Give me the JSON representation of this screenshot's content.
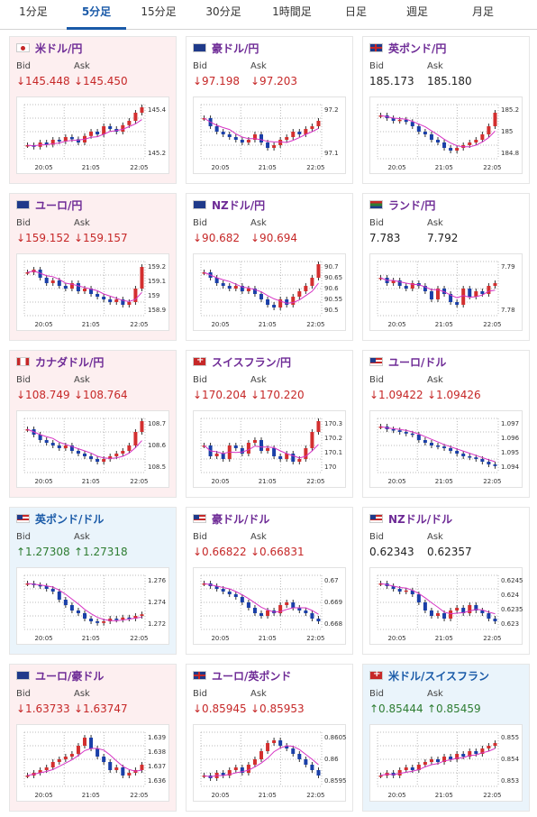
{
  "tabs": [
    {
      "label": "1分足",
      "active": false
    },
    {
      "label": "5分足",
      "active": true
    },
    {
      "label": "15分足",
      "active": false
    },
    {
      "label": "30分足",
      "active": false
    },
    {
      "label": "1時間足",
      "active": false
    },
    {
      "label": "日足",
      "active": false
    },
    {
      "label": "週足",
      "active": false
    },
    {
      "label": "月足",
      "active": false
    }
  ],
  "pairs": [
    {
      "title": "米ドル/円",
      "flag": "jp",
      "tint": "pink",
      "bid_label": "Bid",
      "ask_label": "Ask",
      "bid": "↓145.448",
      "ask": "↓145.450",
      "dir": "dn",
      "chart_data": {
        "type": "candlestick",
        "x_ticks": [
          "20:05",
          "21:05",
          "22:05"
        ],
        "y_ticks": [
          "145.4",
          "145.2"
        ],
        "trend": [
          0.25,
          0.22,
          0.3,
          0.26,
          0.35,
          0.32,
          0.4,
          0.36,
          0.3,
          0.42,
          0.5,
          0.45,
          0.6,
          0.55,
          0.5,
          0.62,
          0.7,
          0.85,
          0.95
        ]
      }
    },
    {
      "title": "豪ドル/円",
      "flag": "au",
      "tint": "white",
      "bid_label": "Bid",
      "ask_label": "Ask",
      "bid": "↓97.198",
      "ask": "↓97.203",
      "dir": "dn",
      "chart_data": {
        "type": "candlestick",
        "x_ticks": [
          "20:05",
          "21:05",
          "22:05"
        ],
        "y_ticks": [
          "97.2",
          "97.1"
        ],
        "trend": [
          0.75,
          0.6,
          0.5,
          0.45,
          0.4,
          0.35,
          0.3,
          0.35,
          0.45,
          0.3,
          0.2,
          0.25,
          0.35,
          0.4,
          0.5,
          0.45,
          0.55,
          0.6,
          0.7
        ]
      }
    },
    {
      "title": "英ポンド/円",
      "flag": "gb",
      "tint": "white",
      "bid_label": "Bid",
      "ask_label": "Ask",
      "bid": "185.173",
      "ask": "185.180",
      "dir": "none",
      "chart_data": {
        "type": "candlestick",
        "x_ticks": [
          "20:05",
          "21:05",
          "22:05"
        ],
        "y_ticks": [
          "185.2",
          "185",
          "184.8"
        ],
        "trend": [
          0.8,
          0.75,
          0.7,
          0.72,
          0.68,
          0.6,
          0.5,
          0.45,
          0.35,
          0.3,
          0.2,
          0.15,
          0.2,
          0.25,
          0.3,
          0.35,
          0.45,
          0.6,
          0.85
        ]
      }
    },
    {
      "title": "ユーロ/円",
      "flag": "eu",
      "tint": "pink",
      "bid_label": "Bid",
      "ask_label": "Ask",
      "bid": "↓159.152",
      "ask": "↓159.157",
      "dir": "dn",
      "chart_data": {
        "type": "candlestick",
        "x_ticks": [
          "20:05",
          "21:05",
          "22:05"
        ],
        "y_ticks": [
          "159.2",
          "159.1",
          "159",
          "158.9"
        ],
        "trend": [
          0.8,
          0.85,
          0.7,
          0.6,
          0.65,
          0.55,
          0.5,
          0.6,
          0.45,
          0.5,
          0.4,
          0.35,
          0.3,
          0.25,
          0.3,
          0.2,
          0.25,
          0.5,
          0.9
        ]
      }
    },
    {
      "title": "NZドル/円",
      "flag": "nz",
      "tint": "white",
      "bid_label": "Bid",
      "ask_label": "Ask",
      "bid": "↓90.682",
      "ask": "↓90.694",
      "dir": "dn",
      "chart_data": {
        "type": "candlestick",
        "x_ticks": [
          "20:05",
          "21:05",
          "22:05"
        ],
        "y_ticks": [
          "90.7",
          "90.65",
          "90.6",
          "90.55",
          "90.5"
        ],
        "trend": [
          0.8,
          0.7,
          0.6,
          0.55,
          0.5,
          0.55,
          0.45,
          0.5,
          0.4,
          0.3,
          0.2,
          0.15,
          0.3,
          0.2,
          0.35,
          0.45,
          0.55,
          0.7,
          0.95
        ]
      }
    },
    {
      "title": "ランド/円",
      "flag": "za",
      "tint": "white",
      "bid_label": "Bid",
      "ask_label": "Ask",
      "bid": "7.783",
      "ask": "7.792",
      "dir": "none",
      "chart_data": {
        "type": "candlestick",
        "x_ticks": [
          "20:05",
          "21:05",
          "22:05"
        ],
        "y_ticks": [
          "7.79",
          "7.78"
        ],
        "trend": [
          0.7,
          0.6,
          0.65,
          0.55,
          0.5,
          0.6,
          0.55,
          0.45,
          0.3,
          0.5,
          0.4,
          0.25,
          0.2,
          0.5,
          0.35,
          0.45,
          0.4,
          0.55,
          0.6
        ]
      }
    },
    {
      "title": "カナダドル/円",
      "flag": "ca",
      "tint": "pink",
      "bid_label": "Bid",
      "ask_label": "Ask",
      "bid": "↓108.749",
      "ask": "↓108.764",
      "dir": "dn",
      "chart_data": {
        "type": "candlestick",
        "x_ticks": [
          "20:05",
          "21:05",
          "22:05"
        ],
        "y_ticks": [
          "108.7",
          "108.6",
          "108.5"
        ],
        "trend": [
          0.8,
          0.7,
          0.6,
          0.55,
          0.5,
          0.45,
          0.5,
          0.4,
          0.35,
          0.3,
          0.25,
          0.2,
          0.25,
          0.3,
          0.35,
          0.4,
          0.5,
          0.75,
          0.95
        ]
      }
    },
    {
      "title": "スイスフラン/円",
      "flag": "ch",
      "tint": "white",
      "bid_label": "Bid",
      "ask_label": "Ask",
      "bid": "↓170.204",
      "ask": "↓170.220",
      "dir": "dn",
      "chart_data": {
        "type": "candlestick",
        "x_ticks": [
          "20:05",
          "21:05",
          "22:05"
        ],
        "y_ticks": [
          "170.3",
          "170.2",
          "170.1",
          "170"
        ],
        "trend": [
          0.5,
          0.3,
          0.35,
          0.25,
          0.5,
          0.45,
          0.35,
          0.55,
          0.6,
          0.4,
          0.45,
          0.3,
          0.25,
          0.35,
          0.2,
          0.25,
          0.45,
          0.75,
          0.95
        ]
      }
    },
    {
      "title": "ユーロ/ドル",
      "flag": "us",
      "tint": "white",
      "bid_label": "Bid",
      "ask_label": "Ask",
      "bid": "↓1.09422",
      "ask": "↓1.09426",
      "dir": "dn",
      "chart_data": {
        "type": "candlestick",
        "x_ticks": [
          "20:05",
          "21:05",
          "22:05"
        ],
        "y_ticks": [
          "1.097",
          "1.096",
          "1.095",
          "1.094"
        ],
        "trend": [
          0.85,
          0.8,
          0.78,
          0.75,
          0.72,
          0.7,
          0.6,
          0.55,
          0.5,
          0.48,
          0.45,
          0.4,
          0.35,
          0.3,
          0.28,
          0.25,
          0.2,
          0.15,
          0.12
        ]
      }
    },
    {
      "title": "英ポンド/ドル",
      "flag": "us",
      "tint": "blue",
      "bid_label": "Bid",
      "ask_label": "Ask",
      "bid": "↑1.27308",
      "ask": "↑1.27318",
      "dir": "up",
      "chart_data": {
        "type": "candlestick",
        "x_ticks": [
          "20:05",
          "21:05",
          "22:05"
        ],
        "y_ticks": [
          "1.276",
          "1.274",
          "1.272"
        ],
        "trend": [
          0.85,
          0.82,
          0.8,
          0.75,
          0.7,
          0.55,
          0.45,
          0.35,
          0.3,
          0.2,
          0.15,
          0.12,
          0.15,
          0.2,
          0.18,
          0.22,
          0.2,
          0.25,
          0.28
        ]
      }
    },
    {
      "title": "豪ドル/ドル",
      "flag": "us",
      "tint": "white",
      "bid_label": "Bid",
      "ask_label": "Ask",
      "bid": "↓0.66822",
      "ask": "↓0.66831",
      "dir": "dn",
      "chart_data": {
        "type": "candlestick",
        "x_ticks": [
          "20:05",
          "21:05",
          "22:05"
        ],
        "y_ticks": [
          "0.67",
          "0.669",
          "0.668"
        ],
        "trend": [
          0.85,
          0.8,
          0.75,
          0.7,
          0.65,
          0.6,
          0.5,
          0.4,
          0.3,
          0.25,
          0.35,
          0.3,
          0.45,
          0.5,
          0.4,
          0.35,
          0.3,
          0.2,
          0.15
        ]
      }
    },
    {
      "title": "NZドル/ドル",
      "flag": "us",
      "tint": "white",
      "bid_label": "Bid",
      "ask_label": "Ask",
      "bid": "0.62343",
      "ask": "0.62357",
      "dir": "none",
      "chart_data": {
        "type": "candlestick",
        "x_ticks": [
          "20:05",
          "21:05",
          "22:05"
        ],
        "y_ticks": [
          "0.6245",
          "0.624",
          "0.6235",
          "0.623"
        ],
        "trend": [
          0.85,
          0.8,
          0.75,
          0.7,
          0.72,
          0.65,
          0.5,
          0.35,
          0.25,
          0.3,
          0.2,
          0.35,
          0.4,
          0.3,
          0.45,
          0.35,
          0.3,
          0.2,
          0.15
        ]
      }
    },
    {
      "title": "ユーロ/豪ドル",
      "flag": "au",
      "tint": "pink",
      "bid_label": "Bid",
      "ask_label": "Ask",
      "bid": "↓1.63733",
      "ask": "↓1.63747",
      "dir": "dn",
      "chart_data": {
        "type": "candlestick",
        "x_ticks": [
          "20:05",
          "21:05",
          "22:05"
        ],
        "y_ticks": [
          "1.639",
          "1.638",
          "1.637",
          "1.636"
        ],
        "trend": [
          0.2,
          0.25,
          0.3,
          0.35,
          0.45,
          0.5,
          0.55,
          0.6,
          0.75,
          0.9,
          0.7,
          0.55,
          0.45,
          0.3,
          0.35,
          0.2,
          0.25,
          0.3,
          0.4
        ]
      }
    },
    {
      "title": "ユーロ/英ポンド",
      "flag": "gb",
      "tint": "white",
      "bid_label": "Bid",
      "ask_label": "Ask",
      "bid": "↓0.85945",
      "ask": "↓0.85953",
      "dir": "dn",
      "chart_data": {
        "type": "candlestick",
        "x_ticks": [
          "20:05",
          "21:05",
          "22:05"
        ],
        "y_ticks": [
          "0.8605",
          "0.86",
          "0.8595"
        ],
        "trend": [
          0.2,
          0.15,
          0.25,
          0.2,
          0.3,
          0.35,
          0.25,
          0.4,
          0.5,
          0.65,
          0.8,
          0.85,
          0.75,
          0.7,
          0.6,
          0.5,
          0.4,
          0.3,
          0.2
        ]
      }
    },
    {
      "title": "米ドル/スイスフラン",
      "flag": "ch",
      "tint": "blue",
      "bid_label": "Bid",
      "ask_label": "Ask",
      "bid": "↑0.85444",
      "ask": "↑0.85459",
      "dir": "up",
      "chart_data": {
        "type": "candlestick",
        "x_ticks": [
          "20:05",
          "21:05",
          "22:05"
        ],
        "y_ticks": [
          "0.855",
          "0.854",
          "0.853"
        ],
        "trend": [
          0.2,
          0.25,
          0.2,
          0.3,
          0.35,
          0.3,
          0.4,
          0.45,
          0.5,
          0.45,
          0.55,
          0.5,
          0.6,
          0.55,
          0.65,
          0.6,
          0.7,
          0.75,
          0.8
        ]
      }
    }
  ]
}
